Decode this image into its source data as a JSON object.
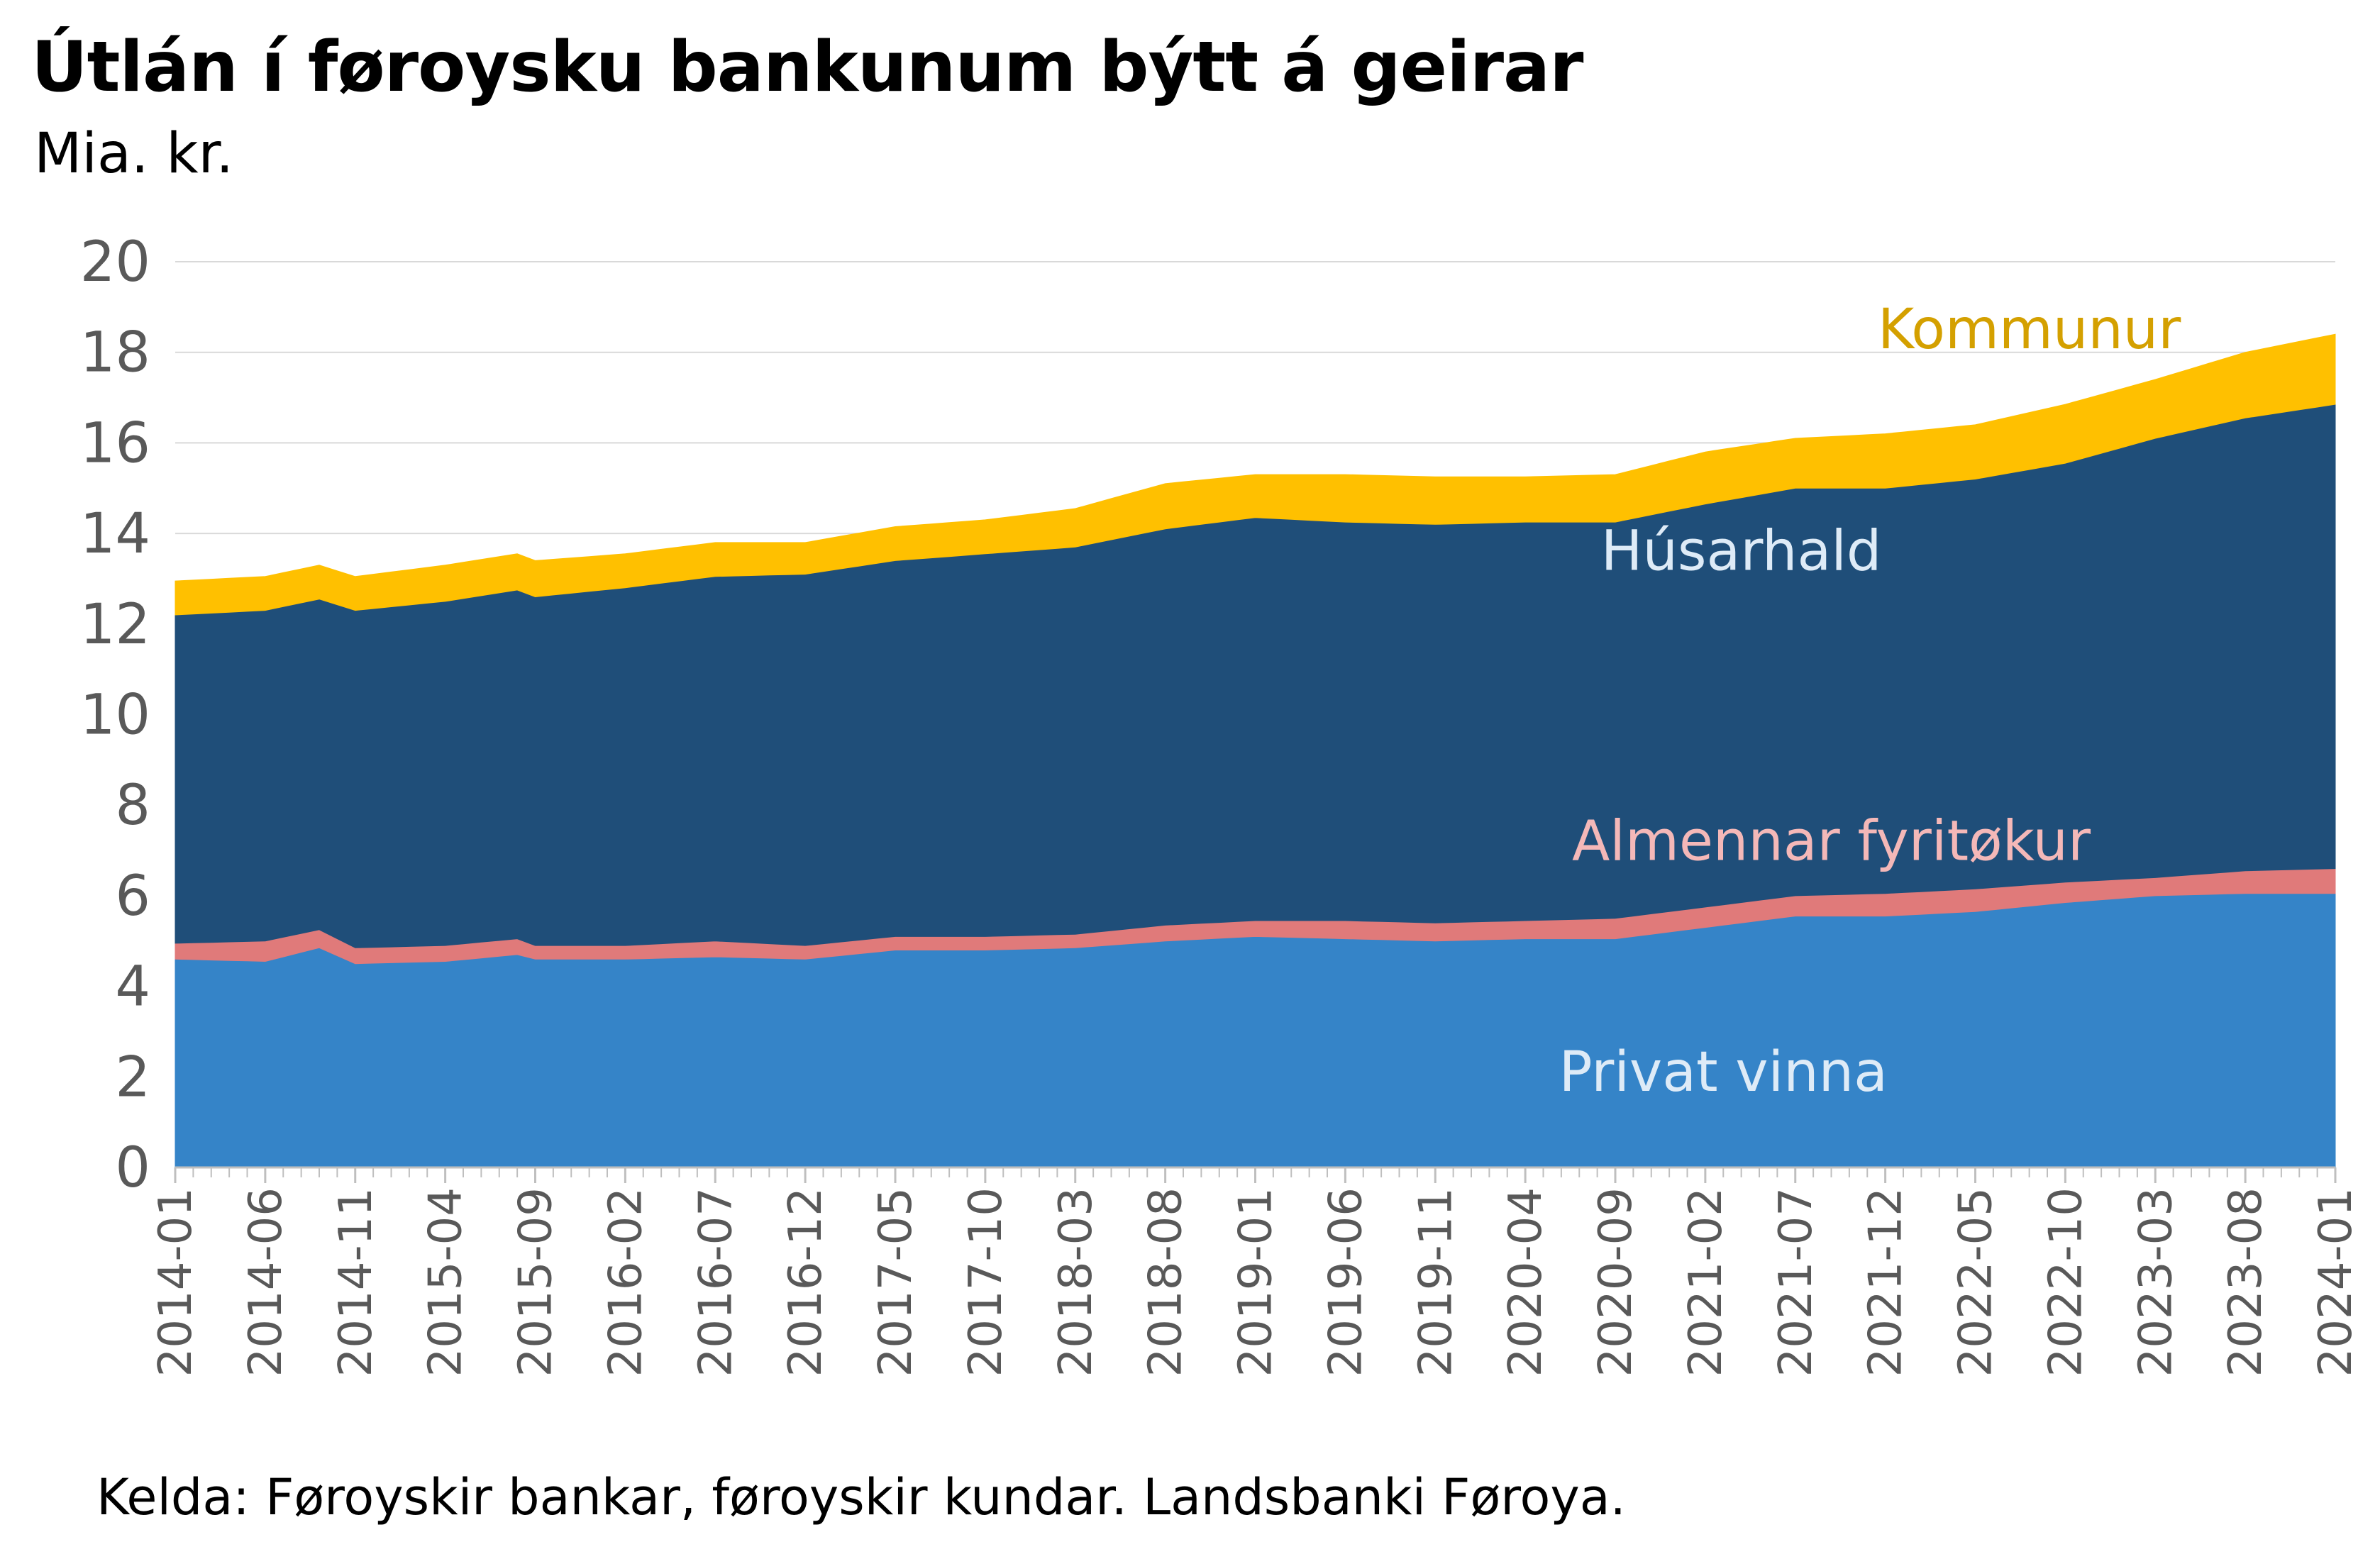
{
  "chart_data": {
    "type": "area",
    "stacked": true,
    "title": "Útlán í føroysku bankunum býtt á geirar",
    "subtitle": "Mia. kr.",
    "source": "Kelda: Føroyskir bankar, føroyskir kundar. Landsbanki Føroya.",
    "ylim": [
      0,
      20
    ],
    "yticks": [
      0,
      2,
      4,
      6,
      8,
      10,
      12,
      14,
      16,
      18,
      20
    ],
    "grid": true,
    "x_start": "2014-01",
    "x_end": "2024-01",
    "xtick_labels": [
      "2014-01",
      "2014-06",
      "2014-11",
      "2015-04",
      "2015-09",
      "2016-02",
      "2016-07",
      "2016-12",
      "2017-05",
      "2017-10",
      "2018-03",
      "2018-08",
      "2019-01",
      "2019-06",
      "2019-11",
      "2020-04",
      "2020-09",
      "2021-02",
      "2021-07",
      "2021-12",
      "2022-05",
      "2022-10",
      "2023-03",
      "2023-08",
      "2024-01"
    ],
    "series": [
      {
        "name": "Privat vinna",
        "color": "#3584c8",
        "label_color": "#deebf7",
        "anchor": {
          "x": "2021-03",
          "y": 2.1
        },
        "values": [
          {
            "x": "2014-01",
            "y": 4.6
          },
          {
            "x": "2014-06",
            "y": 4.55
          },
          {
            "x": "2014-09",
            "y": 4.85
          },
          {
            "x": "2014-11",
            "y": 4.5
          },
          {
            "x": "2015-04",
            "y": 4.55
          },
          {
            "x": "2015-08",
            "y": 4.7
          },
          {
            "x": "2015-09",
            "y": 4.6
          },
          {
            "x": "2016-02",
            "y": 4.6
          },
          {
            "x": "2016-07",
            "y": 4.65
          },
          {
            "x": "2016-12",
            "y": 4.6
          },
          {
            "x": "2017-05",
            "y": 4.8
          },
          {
            "x": "2017-10",
            "y": 4.8
          },
          {
            "x": "2018-03",
            "y": 4.85
          },
          {
            "x": "2018-08",
            "y": 5.0
          },
          {
            "x": "2019-01",
            "y": 5.1
          },
          {
            "x": "2019-06",
            "y": 5.05
          },
          {
            "x": "2019-11",
            "y": 5.0
          },
          {
            "x": "2020-04",
            "y": 5.05
          },
          {
            "x": "2020-09",
            "y": 5.05
          },
          {
            "x": "2021-02",
            "y": 5.3
          },
          {
            "x": "2021-07",
            "y": 5.55
          },
          {
            "x": "2021-12",
            "y": 5.55
          },
          {
            "x": "2022-05",
            "y": 5.65
          },
          {
            "x": "2022-10",
            "y": 5.85
          },
          {
            "x": "2023-03",
            "y": 6.0
          },
          {
            "x": "2023-08",
            "y": 6.05
          },
          {
            "x": "2024-01",
            "y": 6.05
          }
        ]
      },
      {
        "name": "Almennar fyritøkur",
        "color": "#e07a7a",
        "label_color": "#f4b8b8",
        "anchor": {
          "x": "2021-09",
          "y": 7.2
        },
        "values": [
          {
            "x": "2014-01",
            "y": 0.35
          },
          {
            "x": "2014-06",
            "y": 0.45
          },
          {
            "x": "2014-09",
            "y": 0.4
          },
          {
            "x": "2014-11",
            "y": 0.35
          },
          {
            "x": "2015-04",
            "y": 0.35
          },
          {
            "x": "2015-08",
            "y": 0.35
          },
          {
            "x": "2015-09",
            "y": 0.3
          },
          {
            "x": "2016-02",
            "y": 0.3
          },
          {
            "x": "2016-07",
            "y": 0.35
          },
          {
            "x": "2016-12",
            "y": 0.3
          },
          {
            "x": "2017-05",
            "y": 0.3
          },
          {
            "x": "2017-10",
            "y": 0.3
          },
          {
            "x": "2018-03",
            "y": 0.3
          },
          {
            "x": "2018-08",
            "y": 0.35
          },
          {
            "x": "2019-01",
            "y": 0.35
          },
          {
            "x": "2019-06",
            "y": 0.4
          },
          {
            "x": "2019-11",
            "y": 0.4
          },
          {
            "x": "2020-04",
            "y": 0.4
          },
          {
            "x": "2020-09",
            "y": 0.45
          },
          {
            "x": "2021-02",
            "y": 0.45
          },
          {
            "x": "2021-07",
            "y": 0.45
          },
          {
            "x": "2021-12",
            "y": 0.5
          },
          {
            "x": "2022-05",
            "y": 0.5
          },
          {
            "x": "2022-10",
            "y": 0.45
          },
          {
            "x": "2023-03",
            "y": 0.4
          },
          {
            "x": "2023-08",
            "y": 0.5
          },
          {
            "x": "2024-01",
            "y": 0.55
          }
        ]
      },
      {
        "name": "Húsarhald",
        "color": "#1f4e79",
        "label_color": "#deebf7",
        "anchor": {
          "x": "2021-04",
          "y": 13.6
        },
        "values": [
          {
            "x": "2014-01",
            "y": 7.25
          },
          {
            "x": "2014-06",
            "y": 7.3
          },
          {
            "x": "2014-09",
            "y": 7.3
          },
          {
            "x": "2014-11",
            "y": 7.45
          },
          {
            "x": "2015-04",
            "y": 7.6
          },
          {
            "x": "2015-08",
            "y": 7.7
          },
          {
            "x": "2015-09",
            "y": 7.7
          },
          {
            "x": "2016-02",
            "y": 7.9
          },
          {
            "x": "2016-07",
            "y": 8.05
          },
          {
            "x": "2016-12",
            "y": 8.2
          },
          {
            "x": "2017-05",
            "y": 8.3
          },
          {
            "x": "2017-10",
            "y": 8.45
          },
          {
            "x": "2018-03",
            "y": 8.55
          },
          {
            "x": "2018-08",
            "y": 8.75
          },
          {
            "x": "2019-01",
            "y": 8.9
          },
          {
            "x": "2019-06",
            "y": 8.8
          },
          {
            "x": "2019-11",
            "y": 8.8
          },
          {
            "x": "2020-04",
            "y": 8.8
          },
          {
            "x": "2020-09",
            "y": 8.75
          },
          {
            "x": "2021-02",
            "y": 8.9
          },
          {
            "x": "2021-07",
            "y": 9.0
          },
          {
            "x": "2021-12",
            "y": 8.95
          },
          {
            "x": "2022-05",
            "y": 9.05
          },
          {
            "x": "2022-10",
            "y": 9.25
          },
          {
            "x": "2023-03",
            "y": 9.7
          },
          {
            "x": "2023-08",
            "y": 10.0
          },
          {
            "x": "2024-01",
            "y": 10.25
          }
        ]
      },
      {
        "name": "Kommunur",
        "color": "#ffc000",
        "label_color": "#d4a000",
        "anchor": {
          "x": "2022-08",
          "y": 18.5
        },
        "values": [
          {
            "x": "2014-01",
            "y": 0.75
          },
          {
            "x": "2014-06",
            "y": 0.75
          },
          {
            "x": "2014-09",
            "y": 0.75
          },
          {
            "x": "2014-11",
            "y": 0.75
          },
          {
            "x": "2015-04",
            "y": 0.8
          },
          {
            "x": "2015-08",
            "y": 0.8
          },
          {
            "x": "2015-09",
            "y": 0.8
          },
          {
            "x": "2016-02",
            "y": 0.75
          },
          {
            "x": "2016-07",
            "y": 0.75
          },
          {
            "x": "2016-12",
            "y": 0.7
          },
          {
            "x": "2017-05",
            "y": 0.75
          },
          {
            "x": "2017-10",
            "y": 0.75
          },
          {
            "x": "2018-03",
            "y": 0.85
          },
          {
            "x": "2018-08",
            "y": 1.0
          },
          {
            "x": "2019-01",
            "y": 0.95
          },
          {
            "x": "2019-06",
            "y": 1.05
          },
          {
            "x": "2019-11",
            "y": 1.05
          },
          {
            "x": "2020-04",
            "y": 1.0
          },
          {
            "x": "2020-09",
            "y": 1.05
          },
          {
            "x": "2021-02",
            "y": 1.15
          },
          {
            "x": "2021-07",
            "y": 1.1
          },
          {
            "x": "2021-12",
            "y": 1.2
          },
          {
            "x": "2022-05",
            "y": 1.2
          },
          {
            "x": "2022-10",
            "y": 1.3
          },
          {
            "x": "2023-03",
            "y": 1.3
          },
          {
            "x": "2023-08",
            "y": 1.45
          },
          {
            "x": "2024-01",
            "y": 1.55
          }
        ]
      }
    ]
  }
}
